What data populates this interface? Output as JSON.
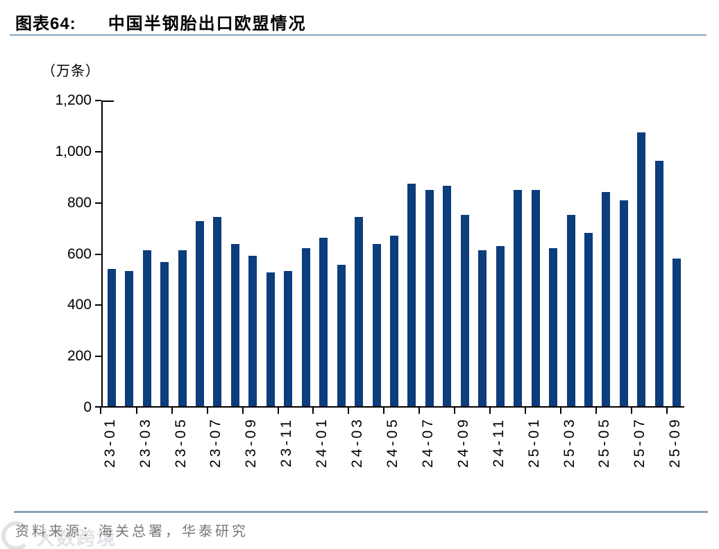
{
  "header": {
    "figure_label": "图表64:",
    "title": "中国半钢胎出口欧盟情况"
  },
  "chart_data": {
    "type": "bar",
    "title": "中国半钢胎出口欧盟情况",
    "unit_label": "（万条）",
    "xlabel": "",
    "ylabel": "万条",
    "ylim": [
      0,
      1200
    ],
    "grid": false,
    "legend": false,
    "bar_color": "#0c3d7c",
    "y_ticks": [
      0,
      200,
      400,
      600,
      800,
      1000,
      1200
    ],
    "y_tick_labels": [
      "0",
      "200",
      "400",
      "600",
      "800",
      "1,000",
      "1,200"
    ],
    "x_label_every": 2,
    "categories": [
      "23-01",
      "23-02",
      "23-03",
      "23-04",
      "23-05",
      "23-06",
      "23-07",
      "23-08",
      "23-09",
      "23-10",
      "23-11",
      "23-12",
      "24-01",
      "24-02",
      "24-03",
      "24-04",
      "24-05",
      "24-06",
      "24-07",
      "24-08",
      "24-09",
      "24-10",
      "24-11",
      "24-12",
      "25-01",
      "25-02",
      "25-03",
      "25-04",
      "25-05",
      "25-06",
      "25-07",
      "25-08",
      "25-09"
    ],
    "values": [
      540,
      532,
      613,
      565,
      613,
      727,
      744,
      637,
      590,
      524,
      532,
      620,
      660,
      555,
      744,
      638,
      669,
      874,
      848,
      864,
      751,
      613,
      629,
      848,
      848,
      620,
      751,
      679,
      841,
      808,
      1076,
      962,
      580
    ],
    "x_tick_labels": [
      "23-01",
      "23-03",
      "23-05",
      "23-07",
      "23-09",
      "23-11",
      "24-01",
      "24-03",
      "24-05",
      "24-07",
      "24-09",
      "24-11",
      "25-01",
      "25-03",
      "25-05",
      "25-07",
      "25-09"
    ]
  },
  "footer": {
    "source": "资料来源：海关总署，华泰研究"
  },
  "watermark": {
    "text": "大数跨境"
  },
  "colors": {
    "bar": "#0c3d7c",
    "title_rule": "#a6bccc",
    "footer_rule": "#8ca3b8",
    "source_text": "#787878",
    "axis": "#000000"
  }
}
